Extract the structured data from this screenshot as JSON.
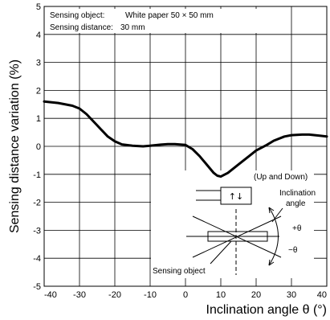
{
  "chart_data": {
    "type": "line",
    "xlabel": "Inclination angle θ (°)",
    "ylabel": "Sensing distance variation (%)",
    "xlim": [
      -40,
      40
    ],
    "ylim": [
      -5,
      5
    ],
    "xticks": [
      -40,
      -30,
      -20,
      -10,
      0,
      10,
      20,
      30,
      40
    ],
    "yticks": [
      5,
      4,
      3,
      2,
      1,
      0,
      -1,
      -2,
      -3,
      -4,
      -5
    ],
    "grid": true,
    "series": [
      {
        "x": [
          -40,
          -36,
          -32,
          -30,
          -28,
          -25,
          -22,
          -20,
          -18,
          -15,
          -12,
          -10,
          -7,
          -5,
          -3,
          0,
          2,
          4,
          6,
          8,
          9,
          10,
          12,
          15,
          18,
          20,
          23,
          25,
          28,
          30,
          33,
          35,
          38,
          40
        ],
        "y": [
          1.6,
          1.55,
          1.45,
          1.35,
          1.15,
          0.75,
          0.35,
          0.18,
          0.07,
          0.02,
          0.0,
          0.02,
          0.06,
          0.08,
          0.08,
          0.05,
          -0.1,
          -0.35,
          -0.65,
          -0.95,
          -1.05,
          -1.08,
          -0.95,
          -0.65,
          -0.35,
          -0.15,
          0.05,
          0.2,
          0.35,
          0.4,
          0.42,
          0.42,
          0.38,
          0.35
        ],
        "color": "#000000"
      }
    ],
    "annotations": {
      "object_label": "Sensing object:",
      "object_value": "White paper 50 × 50 mm",
      "distance_label": "Sensing distance:",
      "distance_value": "30 mm"
    },
    "inset": {
      "direction": "(Up and Down)",
      "incl_line1": "Inclination",
      "incl_line2": "angle",
      "plus_theta": "+θ",
      "minus_theta": "−θ",
      "object": "Sensing object"
    }
  }
}
